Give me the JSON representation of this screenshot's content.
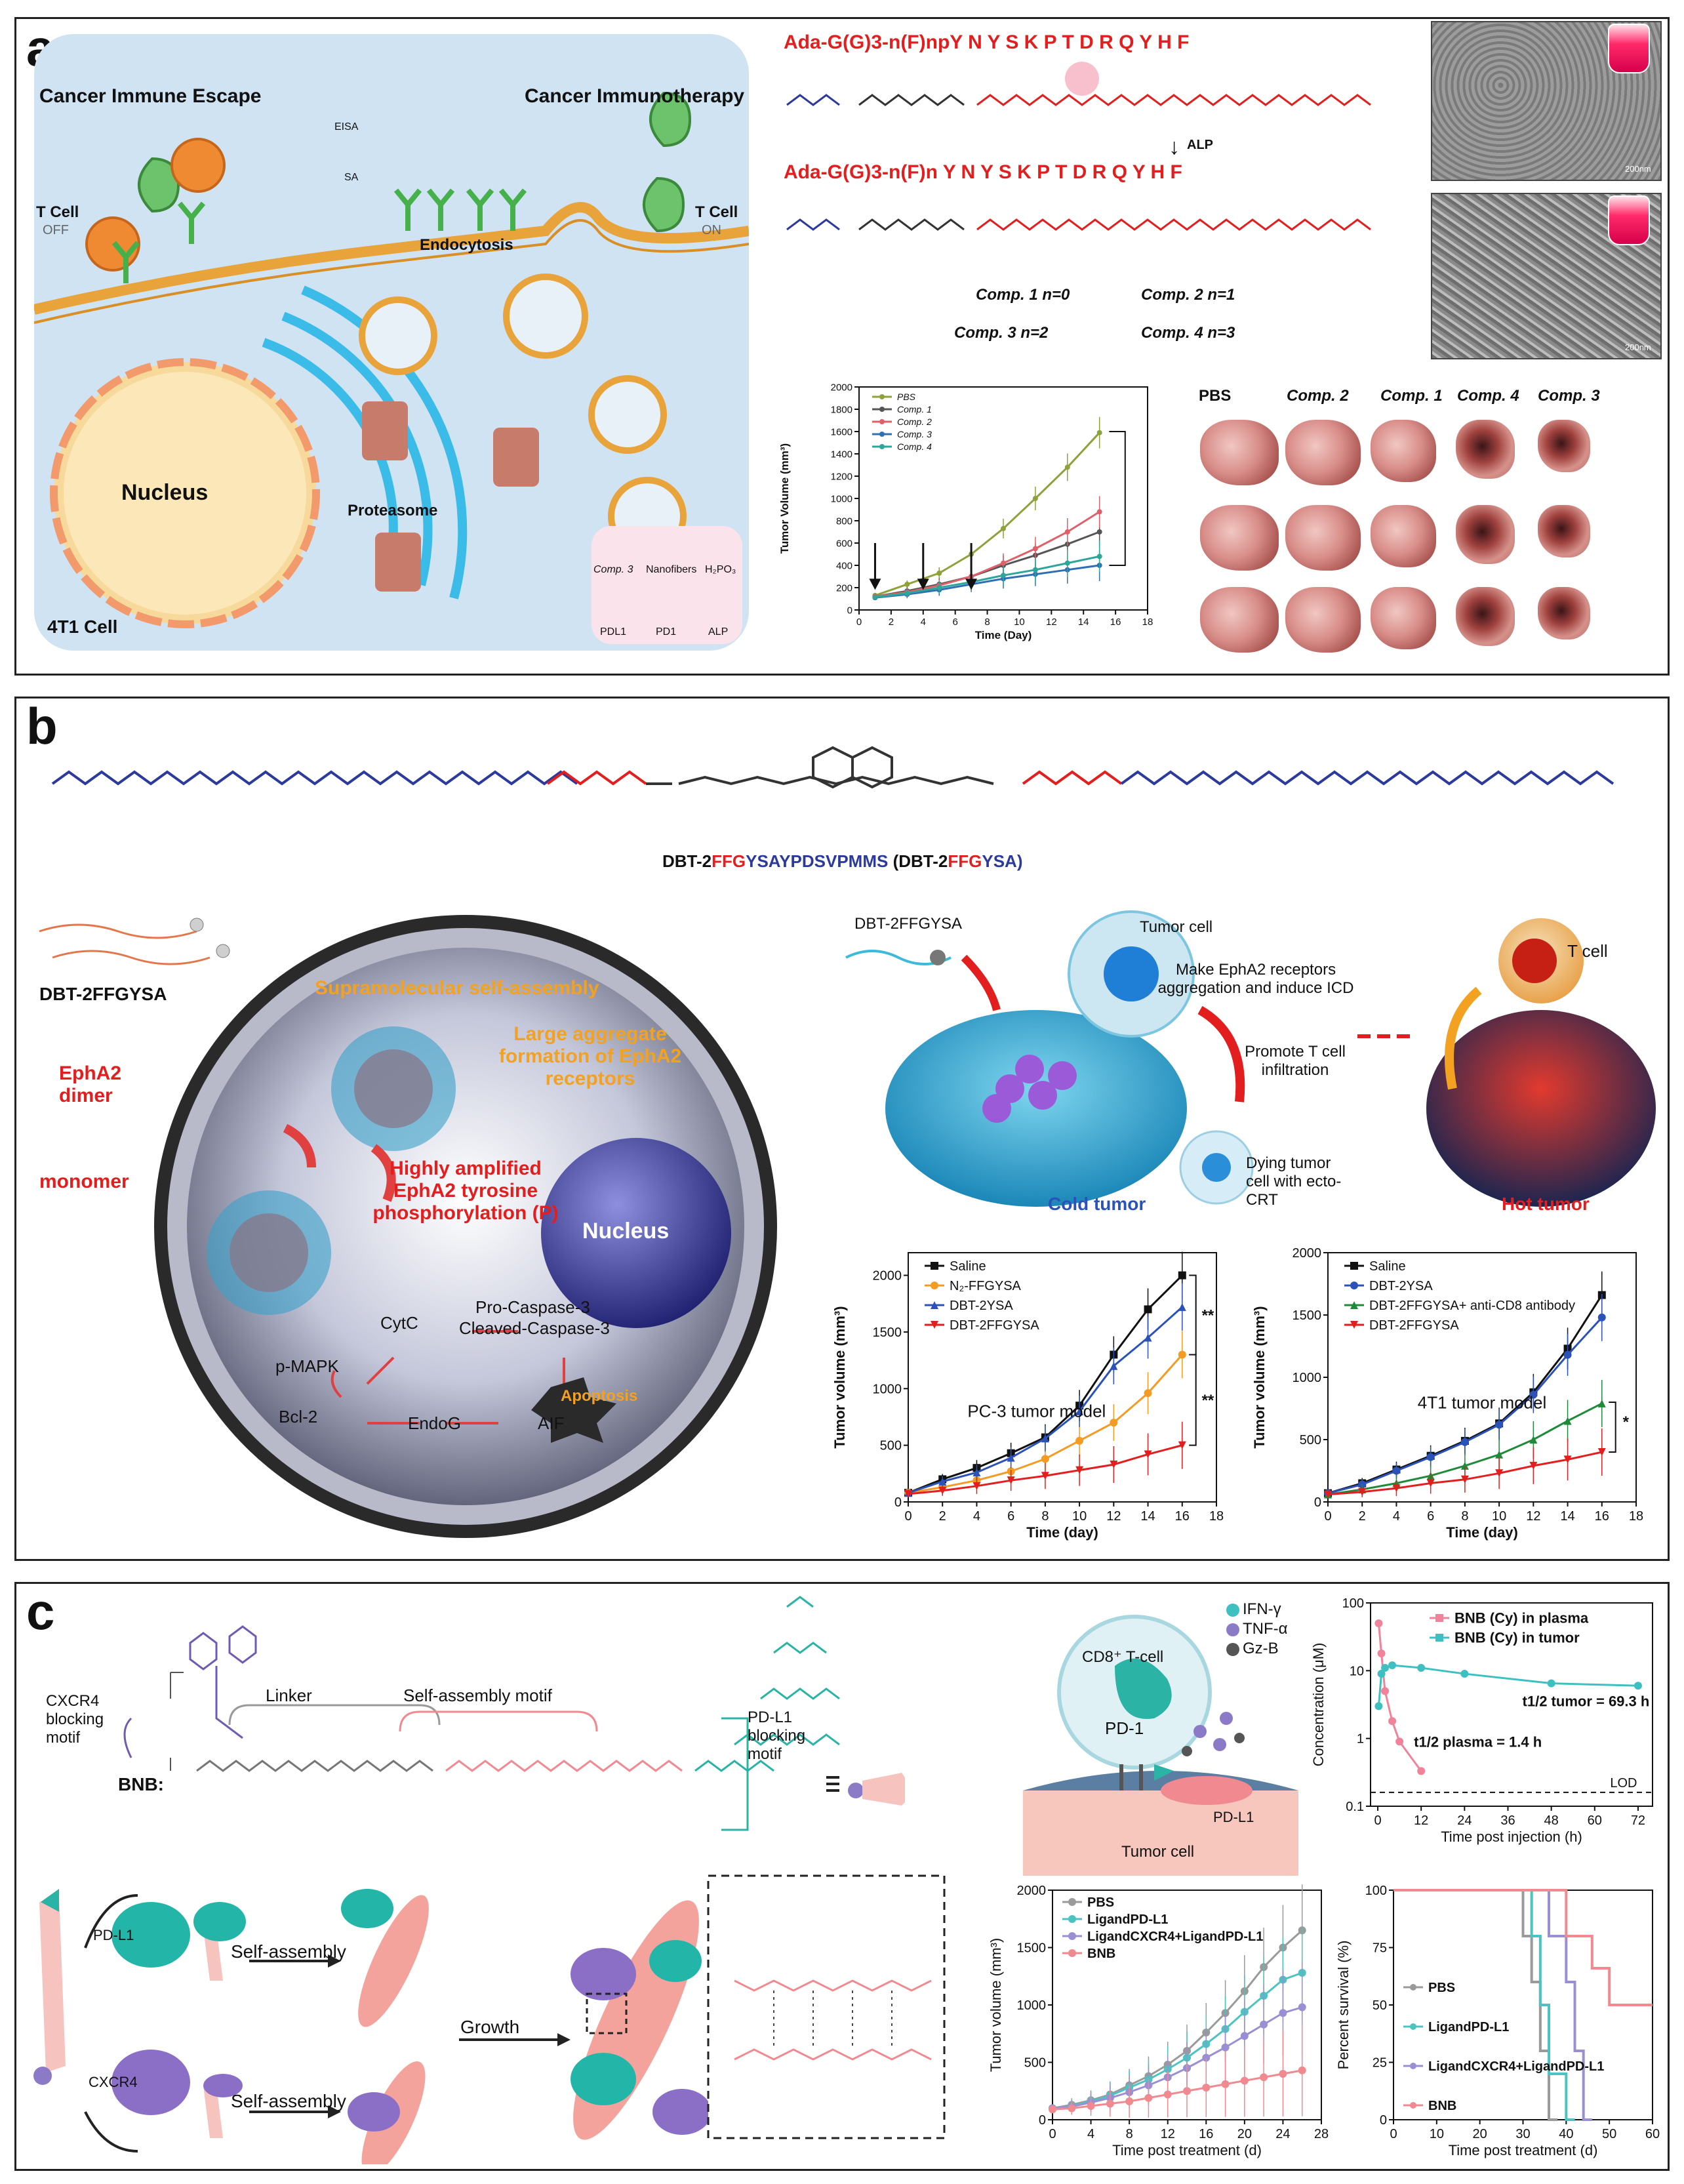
{
  "panel_a": {
    "label": "a",
    "cell": {
      "escape": "Cancer Immune Escape",
      "immunotherapy": "Cancer Immunotherapy",
      "tcell_off": "T Cell",
      "off": "OFF",
      "tcell_on": "T Cell",
      "on": "ON",
      "eisa": "EISA",
      "sa": "SA",
      "endocytosis": "Endocytosis",
      "proteasome": "Proteasome",
      "nucleus": "Nucleus",
      "cell_name": "4T1 Cell"
    },
    "legend": {
      "comp3": "Comp. 3",
      "nanofibers": "Nanofibers",
      "h2po3": "H₂PO₃",
      "pdl1": "PDL1",
      "pd1": "PD1",
      "alp": "ALP"
    },
    "sequence_top": "Ada-G(G)3-n(F)npY N Y S K P T D R Q Y H F",
    "sequence_bottom": "Ada-G(G)3-n(F)n Y N Y S K P T D R Q Y H F",
    "alp_arrow": "ALP",
    "compounds": [
      "Comp. 1  n=0",
      "Comp. 2  n=1",
      "Comp. 3  n=2",
      "Comp. 4  n=3"
    ],
    "sem_scale": "200nm",
    "photo_headers": [
      "PBS",
      "Comp. 2",
      "Comp. 1",
      "Comp. 4",
      "Comp. 3"
    ]
  },
  "panel_b": {
    "label": "b",
    "sequence_name_prefix": "DBT-2",
    "sequence_name_red": "FFG",
    "sequence_name_blue": "YSAYPDSVPMMS",
    "sequence_short_prefix": "(DBT-2",
    "sequence_short_red": "FFG",
    "sequence_short_blue": "YSA)",
    "left": {
      "dbt": "DBT-2FFGYSA",
      "epha2_dimer": "EphA2 dimer",
      "monomer": "monomer",
      "self_assembly": "Supramolecular self-assembly",
      "large_aggregate": "Large aggregate formation of EphA2 receptors",
      "amplified": "Highly amplified EphA2 tyrosine phosphorylation (P)",
      "nucleus": "Nucleus",
      "cytc": "CytC",
      "pro_caspase": "Pro-Caspase-3",
      "cleaved_caspase": "Cleaved-Caspase-3",
      "pmapk": "p-MAPK",
      "bcl2": "Bcl-2",
      "endog": "EndoG",
      "aif": "AIF",
      "apoptosis": "Apoptosis"
    },
    "right": {
      "dbt": "DBT-2FFGYSA",
      "tumor_cell": "Tumor cell",
      "make_epha2": "Make EphA2 receptors aggregation and induce ICD",
      "promote": "Promote T cell infiltration",
      "tcell": "T cell",
      "dying": "Dying tumor cell with ecto-CRT",
      "cold": "Cold tumor",
      "hot": "Hot tumor"
    }
  },
  "panel_c": {
    "label": "c",
    "cxcr4_motif": "CXCR4 blocking motif",
    "linker": "Linker",
    "self_assembly_motif": "Self-assembly motif",
    "pdl1_motif": "PD-L1 blocking motif",
    "bnb": "BNB:",
    "pdl1": "PD-L1",
    "cxcr4": "CXCR4",
    "self_assembly": "Self-assembly",
    "growth": "Growth",
    "tcell": {
      "cd8": "CD8⁺ T-cell",
      "pd1": "PD-1",
      "pdl1": "PD-L1",
      "tumor": "Tumor cell",
      "ifn": "IFN-γ",
      "tnf": "TNF-α",
      "gzb": "Gz-B"
    }
  },
  "chart_data": [
    {
      "id": "a_tumor_volume",
      "type": "line",
      "xlabel": "Time (Day)",
      "ylabel": "Tumor Volume (mm³)",
      "xlim": [
        0,
        18
      ],
      "ylim": [
        0,
        2000
      ],
      "xticks": [
        0,
        2,
        4,
        6,
        8,
        10,
        12,
        14,
        16,
        18
      ],
      "yticks": [
        0,
        200,
        400,
        600,
        800,
        1000,
        1200,
        1400,
        1600,
        1800,
        2000
      ],
      "x": [
        1,
        3,
        5,
        7,
        9,
        11,
        13,
        15
      ],
      "dosing_days": [
        1,
        4,
        7
      ],
      "series": [
        {
          "name": "PBS",
          "color": "#8da23a",
          "values": [
            130,
            230,
            330,
            500,
            730,
            1000,
            1280,
            1590
          ]
        },
        {
          "name": "Comp. 1",
          "color": "#555555",
          "values": [
            120,
            170,
            230,
            300,
            400,
            490,
            590,
            700
          ]
        },
        {
          "name": "Comp. 2",
          "color": "#e0606a",
          "values": [
            120,
            160,
            220,
            300,
            420,
            550,
            700,
            880
          ]
        },
        {
          "name": "Comp. 3",
          "color": "#2f6fb4",
          "values": [
            110,
            140,
            180,
            230,
            280,
            320,
            360,
            400
          ]
        },
        {
          "name": "Comp. 4",
          "color": "#2ea59a",
          "values": [
            115,
            150,
            200,
            250,
            310,
            360,
            420,
            480
          ]
        }
      ]
    },
    {
      "id": "b_pc3",
      "type": "line",
      "annotation": "PC-3 tumor model",
      "xlabel": "Time (day)",
      "ylabel": "Tumor volume (mm³)",
      "xlim": [
        0,
        18
      ],
      "ylim": [
        0,
        2200
      ],
      "xticks": [
        0,
        2,
        4,
        6,
        8,
        10,
        12,
        14,
        16,
        18
      ],
      "yticks": [
        0,
        500,
        1000,
        1500,
        2000
      ],
      "x": [
        0,
        2,
        4,
        6,
        8,
        10,
        12,
        14,
        16
      ],
      "significance": [
        "**",
        "**"
      ],
      "series": [
        {
          "name": "Saline",
          "color": "#111111",
          "marker": "square",
          "values": [
            80,
            200,
            300,
            430,
            570,
            850,
            1300,
            1700,
            2000
          ]
        },
        {
          "name": "N₂-FFGYSA",
          "color": "#f39b22",
          "marker": "circle",
          "values": [
            80,
            130,
            190,
            270,
            380,
            540,
            700,
            960,
            1300
          ]
        },
        {
          "name": "DBT-2YSA",
          "color": "#2b52b8",
          "marker": "triangle-up",
          "values": [
            80,
            180,
            260,
            390,
            560,
            800,
            1200,
            1450,
            1720
          ]
        },
        {
          "name": "DBT-2FFGYSA",
          "color": "#e21e1e",
          "marker": "triangle-down",
          "values": [
            70,
            100,
            140,
            190,
            230,
            280,
            330,
            420,
            500
          ]
        }
      ]
    },
    {
      "id": "b_4t1",
      "type": "line",
      "annotation": "4T1 tumor model",
      "xlabel": "Time (day)",
      "ylabel": "Tumor volume (mm³)",
      "xlim": [
        0,
        18
      ],
      "ylim": [
        0,
        2000
      ],
      "xticks": [
        0,
        2,
        4,
        6,
        8,
        10,
        12,
        14,
        16,
        18
      ],
      "yticks": [
        0,
        500,
        1000,
        1500,
        2000
      ],
      "x": [
        0,
        2,
        4,
        6,
        8,
        10,
        12,
        14,
        16
      ],
      "significance": [
        "*"
      ],
      "series": [
        {
          "name": "Saline",
          "color": "#111111",
          "marker": "square",
          "values": [
            70,
            150,
            260,
            370,
            490,
            630,
            880,
            1230,
            1660
          ]
        },
        {
          "name": "DBT-2YSA",
          "color": "#2b52b8",
          "marker": "circle",
          "values": [
            70,
            140,
            250,
            360,
            480,
            620,
            860,
            1180,
            1480
          ]
        },
        {
          "name": "DBT-2FFGYSA+ anti-CD8 antibody",
          "color": "#1f8a3a",
          "marker": "triangle-up",
          "values": [
            60,
            100,
            150,
            210,
            290,
            380,
            500,
            650,
            790
          ]
        },
        {
          "name": "DBT-2FFGYSA",
          "color": "#e21e1e",
          "marker": "triangle-down",
          "values": [
            60,
            80,
            110,
            150,
            180,
            230,
            290,
            340,
            400
          ]
        }
      ]
    },
    {
      "id": "c_concentration",
      "type": "line",
      "yscale": "log",
      "xlabel": "Time post injection (h)",
      "ylabel": "Concentration (μM)",
      "xlim": [
        -2,
        76
      ],
      "ylim": [
        0.1,
        100
      ],
      "xticks": [
        0,
        12,
        24,
        36,
        48,
        60,
        72
      ],
      "yticks": [
        0.1,
        1,
        10,
        100
      ],
      "lod": 0.16,
      "lod_label": "LOD",
      "annotations": [
        "t1/2 tumor = 69.3 h",
        "t1/2 plasma = 1.4 h"
      ],
      "series": [
        {
          "name": "BNB (Cy) in plasma",
          "color": "#f0829a",
          "x": [
            0.25,
            1,
            2,
            4,
            6,
            12
          ],
          "values": [
            50,
            18,
            5,
            1.8,
            0.9,
            0.33
          ]
        },
        {
          "name": "BNB (Cy) in tumor",
          "color": "#3fc0c0",
          "x": [
            0.25,
            1,
            2,
            4,
            12,
            24,
            48,
            72
          ],
          "values": [
            3,
            9,
            11,
            12,
            11,
            9,
            6.5,
            6
          ]
        }
      ]
    },
    {
      "id": "c_tumor_volume",
      "type": "line",
      "xlabel": "Time post treatment (d)",
      "ylabel": "Tumor volume (mm³)",
      "xlim": [
        0,
        28
      ],
      "ylim": [
        0,
        2000
      ],
      "xticks": [
        0,
        4,
        8,
        12,
        16,
        20,
        24,
        28
      ],
      "yticks": [
        0,
        500,
        1000,
        1500,
        2000
      ],
      "x": [
        0,
        2,
        4,
        6,
        8,
        10,
        12,
        14,
        16,
        18,
        20,
        22,
        24,
        26
      ],
      "series": [
        {
          "name": "PBS",
          "color": "#9a9a9a",
          "values": [
            100,
            130,
            170,
            220,
            300,
            380,
            480,
            600,
            760,
            930,
            1120,
            1330,
            1500,
            1650
          ]
        },
        {
          "name": "LigandPD-L1",
          "color": "#4cc3c1",
          "values": [
            100,
            120,
            160,
            210,
            280,
            350,
            440,
            540,
            660,
            790,
            940,
            1080,
            1220,
            1280
          ]
        },
        {
          "name": "LigandCXCR4+LigandPD-L1",
          "color": "#9b8fd3",
          "values": [
            100,
            115,
            150,
            190,
            240,
            300,
            370,
            450,
            540,
            630,
            730,
            830,
            930,
            980
          ]
        },
        {
          "name": "BNB",
          "color": "#f08a90",
          "values": [
            90,
            100,
            120,
            140,
            160,
            190,
            220,
            250,
            280,
            310,
            340,
            370,
            400,
            430
          ]
        }
      ]
    },
    {
      "id": "c_survival",
      "type": "line",
      "step": true,
      "xlabel": "Time post treatment (d)",
      "ylabel": "Percent survival (%)",
      "xlim": [
        0,
        60
      ],
      "ylim": [
        0,
        100
      ],
      "xticks": [
        0,
        10,
        20,
        30,
        40,
        50,
        60
      ],
      "yticks": [
        0,
        25,
        50,
        75,
        100
      ],
      "series": [
        {
          "name": "PBS",
          "color": "#9a9a9a",
          "x": [
            0,
            30,
            32,
            34,
            36,
            38
          ],
          "values": [
            100,
            80,
            60,
            30,
            0,
            0
          ]
        },
        {
          "name": "LigandPD-L1",
          "color": "#4cc3c1",
          "x": [
            0,
            32,
            34,
            36,
            40,
            42
          ],
          "values": [
            100,
            80,
            50,
            20,
            0,
            0
          ]
        },
        {
          "name": "LigandCXCR4+LigandPD-L1",
          "color": "#9b8fd3",
          "x": [
            0,
            36,
            40,
            42,
            44,
            46
          ],
          "values": [
            100,
            80,
            60,
            30,
            0,
            0
          ]
        },
        {
          "name": "BNB",
          "color": "#f08a90",
          "x": [
            0,
            40,
            46,
            50,
            60
          ],
          "values": [
            100,
            80,
            66,
            50,
            50
          ]
        }
      ]
    }
  ]
}
